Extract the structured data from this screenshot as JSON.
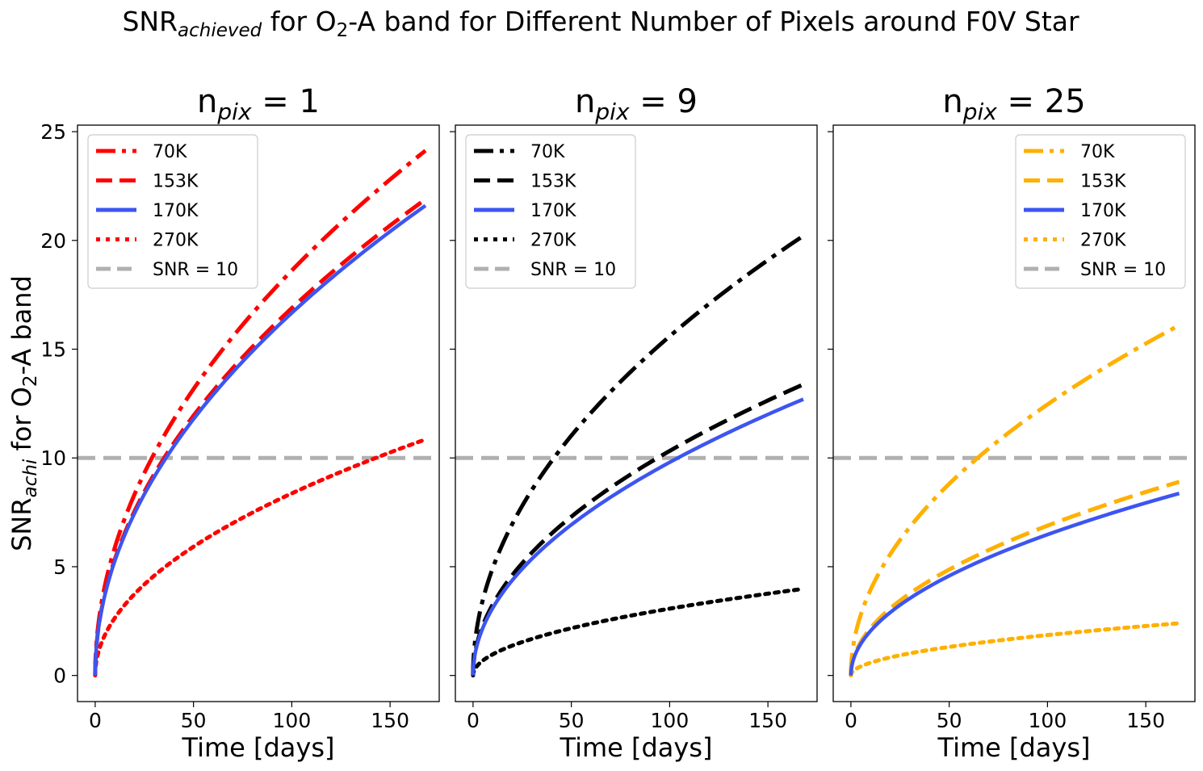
{
  "figure": {
    "title_main": "SNR",
    "title_sub": "achieved",
    "title_rest_a": " for O",
    "title_rest_b": "2",
    "title_rest_c": "-A band for Different Number of Pixels around F0V Star",
    "ylabel_main": "SNR",
    "ylabel_sub": "achi",
    "ylabel_mid": " for O",
    "ylabel_sub2": "2",
    "ylabel_rest": "-A band"
  },
  "chart_data": [
    {
      "type": "line",
      "title_main": "n",
      "title_sub": "pix",
      "title_rest": " = 1",
      "xlabel": "Time [days]",
      "xlim": [
        -9,
        175
      ],
      "ylim": [
        -1.2,
        25.3
      ],
      "xticks": [
        0,
        50,
        100,
        150
      ],
      "yticks": [
        0,
        5,
        10,
        15,
        20,
        25
      ],
      "legend_loc": "upper left",
      "series": [
        {
          "name": "70K",
          "color": "#ff0000",
          "style": "dashdot",
          "max_x": 168,
          "values": [
            [
              0,
              0
            ],
            [
              1,
              1.86
            ],
            [
              5,
              4.16
            ],
            [
              10,
              5.89
            ],
            [
              25,
              9.31
            ],
            [
              50,
              13.16
            ],
            [
              75,
              16.12
            ],
            [
              100,
              18.61
            ],
            [
              125,
              20.81
            ],
            [
              150,
              22.8
            ],
            [
              168,
              24.13
            ]
          ]
        },
        {
          "name": "153K",
          "color": "#ff0000",
          "style": "dashed",
          "max_x": 168,
          "values": [
            [
              0,
              0
            ],
            [
              1,
              1.69
            ],
            [
              5,
              3.78
            ],
            [
              10,
              5.34
            ],
            [
              25,
              8.45
            ],
            [
              50,
              11.94
            ],
            [
              75,
              14.63
            ],
            [
              100,
              16.89
            ],
            [
              125,
              18.88
            ],
            [
              150,
              20.69
            ],
            [
              168,
              21.89
            ]
          ]
        },
        {
          "name": "170K",
          "color": "#3d55f0",
          "style": "solid",
          "max_x": 168,
          "values": [
            [
              0,
              0
            ],
            [
              1,
              1.67
            ],
            [
              5,
              3.73
            ],
            [
              10,
              5.27
            ],
            [
              25,
              8.33
            ],
            [
              50,
              11.78
            ],
            [
              75,
              14.43
            ],
            [
              100,
              16.66
            ],
            [
              125,
              18.63
            ],
            [
              150,
              20.41
            ],
            [
              168,
              21.6
            ]
          ]
        },
        {
          "name": "270K",
          "color": "#ff0000",
          "style": "dotted",
          "max_x": 168,
          "values": [
            [
              0,
              0
            ],
            [
              1,
              0.84
            ],
            [
              5,
              1.87
            ],
            [
              10,
              2.65
            ],
            [
              25,
              4.19
            ],
            [
              50,
              5.92
            ],
            [
              75,
              7.25
            ],
            [
              100,
              8.37
            ],
            [
              125,
              9.36
            ],
            [
              150,
              10.25
            ],
            [
              168,
              10.85
            ]
          ]
        },
        {
          "name": "SNR = 10",
          "color": "#b0b0b0",
          "style": "hline",
          "values": [
            [
              -9,
              10
            ],
            [
              175,
              10
            ]
          ]
        }
      ]
    },
    {
      "type": "line",
      "title_main": "n",
      "title_sub": "pix",
      "title_rest": " = 9",
      "xlabel": "Time [days]",
      "xlim": [
        -9,
        175
      ],
      "ylim": [
        -1.2,
        25.3
      ],
      "xticks": [
        0,
        50,
        100,
        150
      ],
      "yticks": [
        0,
        5,
        10,
        15,
        20,
        25
      ],
      "legend_loc": "upper left",
      "series": [
        {
          "name": "70K",
          "color": "#000000",
          "style": "dashdot",
          "max_x": 168,
          "values": [
            [
              0,
              0
            ],
            [
              1,
              1.56
            ],
            [
              5,
              3.49
            ],
            [
              10,
              4.93
            ],
            [
              25,
              7.8
            ],
            [
              50,
              11.02
            ],
            [
              75,
              13.5
            ],
            [
              100,
              15.59
            ],
            [
              125,
              17.43
            ],
            [
              150,
              19.1
            ],
            [
              168,
              20.21
            ]
          ]
        },
        {
          "name": "153K",
          "color": "#000000",
          "style": "dashed",
          "max_x": 168,
          "values": [
            [
              0,
              0
            ],
            [
              1,
              1.03
            ],
            [
              5,
              2.31
            ],
            [
              10,
              3.26
            ],
            [
              25,
              5.16
            ],
            [
              50,
              7.3
            ],
            [
              75,
              8.94
            ],
            [
              100,
              10.32
            ],
            [
              125,
              11.54
            ],
            [
              150,
              12.64
            ],
            [
              168,
              13.38
            ]
          ]
        },
        {
          "name": "170K",
          "color": "#3d55f0",
          "style": "solid",
          "max_x": 168,
          "values": [
            [
              0,
              0
            ],
            [
              1,
              0.98
            ],
            [
              5,
              2.19
            ],
            [
              10,
              3.1
            ],
            [
              25,
              4.9
            ],
            [
              50,
              6.93
            ],
            [
              75,
              8.48
            ],
            [
              100,
              9.8
            ],
            [
              125,
              10.95
            ],
            [
              150,
              12.0
            ],
            [
              168,
              12.7
            ]
          ]
        },
        {
          "name": "270K",
          "color": "#000000",
          "style": "dotted",
          "max_x": 168,
          "values": [
            [
              0,
              0
            ],
            [
              1,
              0.31
            ],
            [
              5,
              0.69
            ],
            [
              10,
              0.97
            ],
            [
              25,
              1.54
            ],
            [
              50,
              2.17
            ],
            [
              75,
              2.66
            ],
            [
              100,
              3.07
            ],
            [
              125,
              3.44
            ],
            [
              150,
              3.77
            ],
            [
              168,
              3.98
            ]
          ]
        },
        {
          "name": "SNR = 10",
          "color": "#b0b0b0",
          "style": "hline",
          "values": [
            [
              -9,
              10
            ],
            [
              175,
              10
            ]
          ]
        }
      ]
    },
    {
      "type": "line",
      "title_main": "n",
      "title_sub": "pix",
      "title_rest": " = 25",
      "xlabel": "Time [days]",
      "xlim": [
        -9,
        175
      ],
      "ylim": [
        -1.2,
        25.3
      ],
      "xticks": [
        0,
        50,
        100,
        150
      ],
      "yticks": [
        0,
        5,
        10,
        15,
        20,
        25
      ],
      "legend_loc": "upper right",
      "series": [
        {
          "name": "70K",
          "color": "#ffb000",
          "style": "dashdot",
          "max_x": 167,
          "values": [
            [
              0,
              0
            ],
            [
              1,
              1.24
            ],
            [
              5,
              2.79
            ],
            [
              10,
              3.94
            ],
            [
              25,
              6.23
            ],
            [
              50,
              8.81
            ],
            [
              75,
              10.79
            ],
            [
              100,
              12.46
            ],
            [
              125,
              13.93
            ],
            [
              150,
              15.26
            ],
            [
              167,
              16.1
            ]
          ]
        },
        {
          "name": "153K",
          "color": "#ffb000",
          "style": "dashed",
          "max_x": 167,
          "values": [
            [
              0,
              0
            ],
            [
              1,
              0.69
            ],
            [
              5,
              1.54
            ],
            [
              10,
              2.18
            ],
            [
              25,
              3.45
            ],
            [
              50,
              4.87
            ],
            [
              75,
              5.97
            ],
            [
              100,
              6.89
            ],
            [
              125,
              7.7
            ],
            [
              150,
              8.44
            ],
            [
              167,
              8.9
            ]
          ]
        },
        {
          "name": "170K",
          "color": "#3d55f0",
          "style": "solid",
          "max_x": 167,
          "values": [
            [
              0,
              0
            ],
            [
              1,
              0.65
            ],
            [
              5,
              1.45
            ],
            [
              10,
              2.05
            ],
            [
              25,
              3.24
            ],
            [
              50,
              4.58
            ],
            [
              75,
              5.61
            ],
            [
              100,
              6.48
            ],
            [
              125,
              7.24
            ],
            [
              150,
              7.93
            ],
            [
              167,
              8.37
            ]
          ]
        },
        {
          "name": "270K",
          "color": "#ffb000",
          "style": "dotted",
          "max_x": 167,
          "values": [
            [
              0,
              0
            ],
            [
              1,
              0.19
            ],
            [
              5,
              0.42
            ],
            [
              10,
              0.59
            ],
            [
              25,
              0.93
            ],
            [
              50,
              1.31
            ],
            [
              75,
              1.61
            ],
            [
              100,
              1.86
            ],
            [
              125,
              2.08
            ],
            [
              150,
              2.28
            ],
            [
              167,
              2.4
            ]
          ]
        },
        {
          "name": "SNR = 10",
          "color": "#b0b0b0",
          "style": "hline",
          "values": [
            [
              -9,
              10
            ],
            [
              175,
              10
            ]
          ]
        }
      ]
    }
  ]
}
